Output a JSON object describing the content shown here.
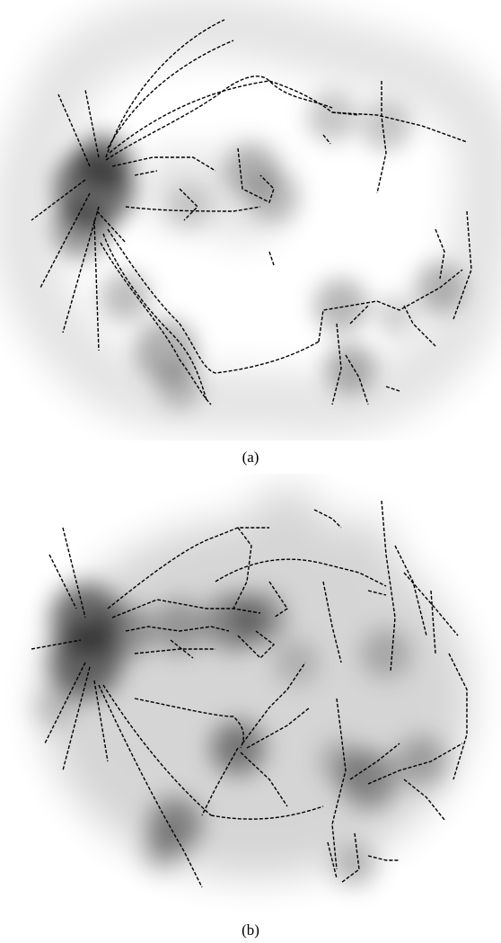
{
  "figure": {
    "panels": [
      {
        "id": "a",
        "caption": "(a)"
      },
      {
        "id": "b",
        "caption": "(b)"
      }
    ]
  }
}
